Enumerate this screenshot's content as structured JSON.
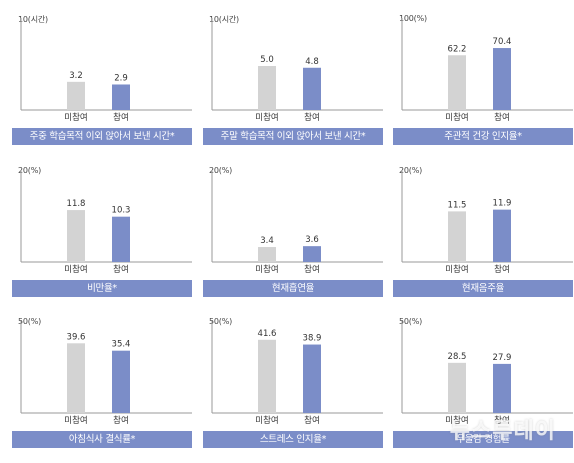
{
  "colors": {
    "non_participant": "#d3d3d3",
    "participant": "#7b8dc8",
    "title_bar": "#7b8dc8",
    "axis": "#9a9a9a"
  },
  "watermark": "뉴스투데이",
  "chart_data": [
    {
      "type": "bar",
      "title": "주중 학습목적 이외 앉아서 보낸 시간*",
      "ymax_label": "10(시간)",
      "ylim": [
        0,
        10
      ],
      "categories": [
        "미참여",
        "참여"
      ],
      "values": [
        3.2,
        2.9
      ],
      "value_labels": [
        "3.2",
        "2.9"
      ]
    },
    {
      "type": "bar",
      "title": "주말 학습목적 이외 앉아서 보낸 시간*",
      "ymax_label": "10(시간)",
      "ylim": [
        0,
        10
      ],
      "categories": [
        "미참여",
        "참여"
      ],
      "values": [
        5.0,
        4.8
      ],
      "value_labels": [
        "5.0",
        "4.8"
      ]
    },
    {
      "type": "bar",
      "title": "주관적 건강 인지율*",
      "ymax_label": "100(%)",
      "ylim": [
        0,
        100
      ],
      "categories": [
        "미참여",
        "참여"
      ],
      "values": [
        62.2,
        70.4
      ],
      "value_labels": [
        "62.2",
        "70.4"
      ]
    },
    {
      "type": "bar",
      "title": "비만율*",
      "ymax_label": "20(%)",
      "ylim": [
        0,
        20
      ],
      "categories": [
        "미참여",
        "참여"
      ],
      "values": [
        11.8,
        10.3
      ],
      "value_labels": [
        "11.8",
        "10.3"
      ]
    },
    {
      "type": "bar",
      "title": "현재흡연율",
      "ymax_label": "20(%)",
      "ylim": [
        0,
        20
      ],
      "categories": [
        "미참여",
        "참여"
      ],
      "values": [
        3.4,
        3.6
      ],
      "value_labels": [
        "3.4",
        "3.6"
      ]
    },
    {
      "type": "bar",
      "title": "현재음주율",
      "ymax_label": "20(%)",
      "ylim": [
        0,
        20
      ],
      "categories": [
        "미참여",
        "참여"
      ],
      "values": [
        11.5,
        11.9
      ],
      "value_labels": [
        "11.5",
        "11.9"
      ]
    },
    {
      "type": "bar",
      "title": "아침식사 결식률*",
      "ymax_label": "50(%)",
      "ylim": [
        0,
        50
      ],
      "categories": [
        "미참여",
        "참여"
      ],
      "values": [
        39.6,
        35.4
      ],
      "value_labels": [
        "39.6",
        "35.4"
      ]
    },
    {
      "type": "bar",
      "title": "스트레스 인지율*",
      "ymax_label": "50(%)",
      "ylim": [
        0,
        50
      ],
      "categories": [
        "미참여",
        "참여"
      ],
      "values": [
        41.6,
        38.9
      ],
      "value_labels": [
        "41.6",
        "38.9"
      ]
    },
    {
      "type": "bar",
      "title": "우울감 경험률",
      "ymax_label": "50(%)",
      "ylim": [
        0,
        50
      ],
      "categories": [
        "미참여",
        "참여"
      ],
      "values": [
        28.5,
        27.9
      ],
      "value_labels": [
        "28.5",
        "27.9"
      ]
    }
  ]
}
